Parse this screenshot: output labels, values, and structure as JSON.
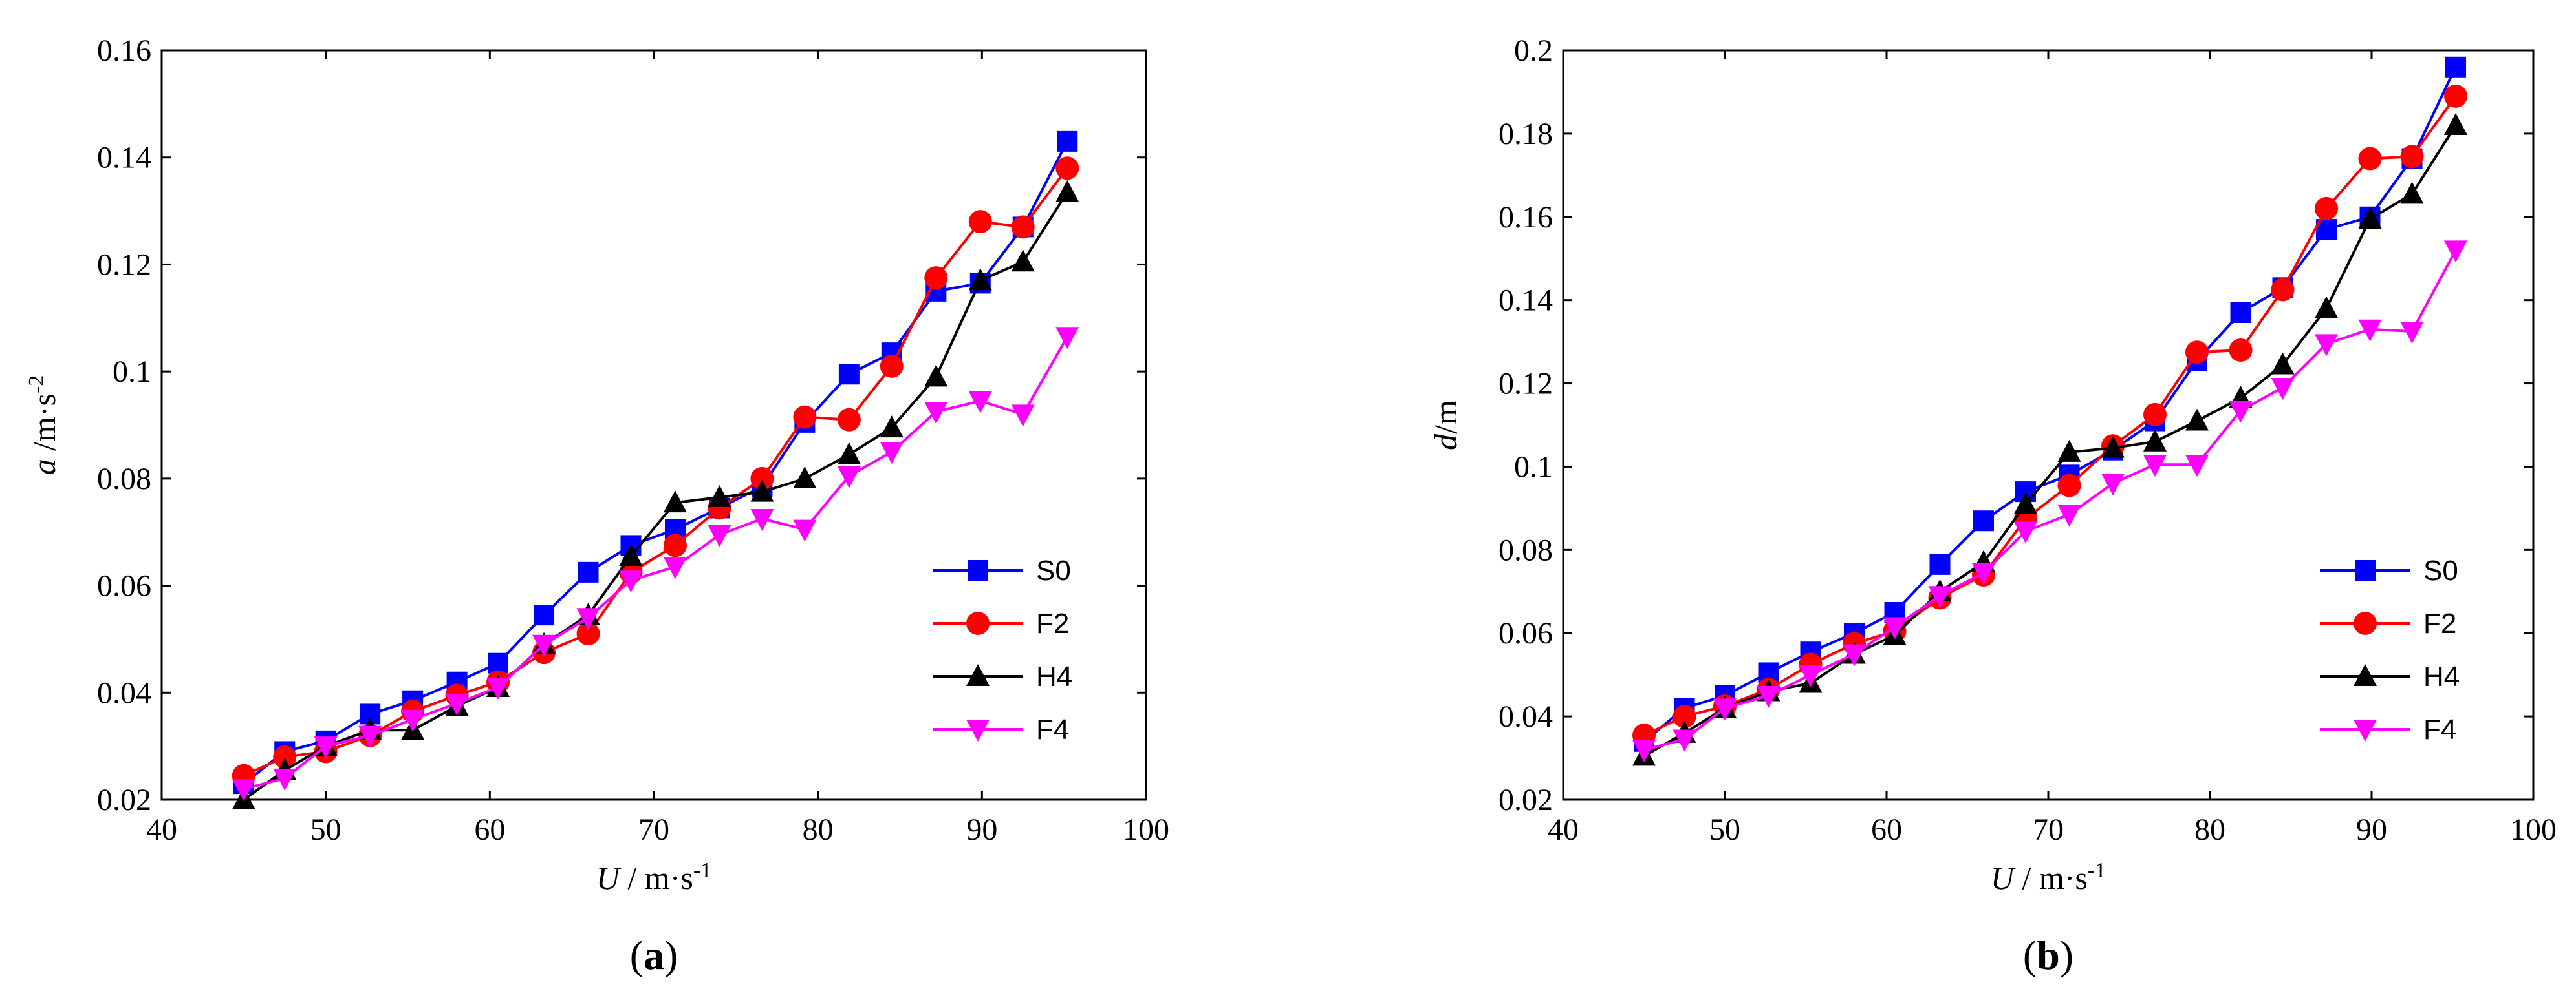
{
  "chart_data": [
    {
      "type": "line",
      "panel_label": "a",
      "xlabel": {
        "var": "U",
        "unit": " / m·s",
        "exp": "-1"
      },
      "ylabel": {
        "var": "a",
        "unit": " /m·s",
        "exp": "-2"
      },
      "xlim": [
        40,
        100
      ],
      "ylim": [
        0.02,
        0.16
      ],
      "xticks": [
        40,
        50,
        60,
        70,
        80,
        90,
        100
      ],
      "xtick_labels": [
        "40",
        "50",
        "60",
        "70",
        "80",
        "90",
        "100"
      ],
      "yticks": [
        0.02,
        0.04,
        0.06,
        0.08,
        0.1,
        0.12,
        0.14,
        0.16
      ],
      "ytick_labels": [
        "0.02",
        "0.04",
        "0.06",
        "0.08",
        "0.1",
        "0.12",
        "0.14",
        "0.16"
      ],
      "legend_position": "bottom-right",
      "x": [
        45,
        47.5,
        50,
        52.7,
        55.3,
        58,
        60.5,
        63.3,
        66,
        68.6,
        71.3,
        74,
        76.6,
        79.2,
        81.9,
        84.5,
        87.2,
        89.9,
        92.5,
        95.2
      ],
      "series": [
        {
          "name": "S0",
          "color": "#0000ff",
          "marker": "square",
          "values": [
            0.023,
            0.029,
            0.031,
            0.036,
            0.0385,
            0.042,
            0.0455,
            0.0545,
            0.0625,
            0.0675,
            0.0705,
            0.0745,
            0.0785,
            0.0905,
            0.0995,
            0.1035,
            0.115,
            0.1165,
            0.127,
            0.143
          ]
        },
        {
          "name": "F2",
          "color": "#ff0000",
          "marker": "circle",
          "values": [
            0.0245,
            0.028,
            0.029,
            0.032,
            0.0365,
            0.0395,
            0.042,
            0.0475,
            0.051,
            0.0625,
            0.0675,
            0.0745,
            0.08,
            0.0915,
            0.091,
            0.101,
            0.1175,
            0.128,
            0.127,
            0.138
          ]
        },
        {
          "name": "H4",
          "color": "#000000",
          "marker": "triangle-up",
          "values": [
            0.02,
            0.0255,
            0.03,
            0.033,
            0.033,
            0.0375,
            0.041,
            0.049,
            0.0545,
            0.0655,
            0.0755,
            0.0765,
            0.0775,
            0.08,
            0.0845,
            0.0895,
            0.099,
            0.117,
            0.1205,
            0.1335
          ]
        },
        {
          "name": "F4",
          "color": "#ff00ff",
          "marker": "triangle-down",
          "values": [
            0.022,
            0.024,
            0.03,
            0.032,
            0.035,
            0.038,
            0.041,
            0.049,
            0.054,
            0.061,
            0.0635,
            0.0695,
            0.0725,
            0.0705,
            0.0805,
            0.085,
            0.0925,
            0.0945,
            0.092,
            0.1065
          ]
        }
      ]
    },
    {
      "type": "line",
      "panel_label": "b",
      "xlabel": {
        "var": "U",
        "unit": " / m·s",
        "exp": "-1"
      },
      "ylabel": {
        "var": "d",
        "unit": "/m",
        "exp": ""
      },
      "xlim": [
        40,
        100
      ],
      "ylim": [
        0.02,
        0.2
      ],
      "xticks": [
        40,
        50,
        60,
        70,
        80,
        90,
        100
      ],
      "xtick_labels": [
        "40",
        "50",
        "60",
        "70",
        "80",
        "90",
        "100"
      ],
      "yticks": [
        0.02,
        0.04,
        0.06,
        0.08,
        0.1,
        0.12,
        0.14,
        0.16,
        0.18,
        0.2
      ],
      "ytick_labels": [
        "0.02",
        "0.04",
        "0.06",
        "0.08",
        "0.1",
        "0.12",
        "0.14",
        "0.16",
        "0.18",
        "0.2"
      ],
      "legend_position": "bottom-right",
      "x": [
        45,
        47.5,
        50,
        52.7,
        55.3,
        58,
        60.5,
        63.3,
        66,
        68.6,
        71.3,
        74,
        76.6,
        79.2,
        81.9,
        84.5,
        87.2,
        89.9,
        92.5,
        95.2
      ],
      "series": [
        {
          "name": "S0",
          "color": "#0000ff",
          "marker": "square",
          "values": [
            0.034,
            0.042,
            0.045,
            0.0505,
            0.0555,
            0.06,
            0.065,
            0.0765,
            0.087,
            0.094,
            0.098,
            0.104,
            0.111,
            0.1255,
            0.137,
            0.143,
            0.157,
            0.16,
            0.174,
            0.196
          ]
        },
        {
          "name": "F2",
          "color": "#ff0000",
          "marker": "circle",
          "values": [
            0.0355,
            0.04,
            0.0425,
            0.0465,
            0.0525,
            0.0575,
            0.0605,
            0.0685,
            0.074,
            0.0875,
            0.0955,
            0.105,
            0.1125,
            0.1275,
            0.128,
            0.1425,
            0.162,
            0.174,
            0.1745,
            0.189
          ]
        },
        {
          "name": "H4",
          "color": "#000000",
          "marker": "triangle-up",
          "values": [
            0.0305,
            0.036,
            0.042,
            0.046,
            0.048,
            0.055,
            0.0595,
            0.07,
            0.077,
            0.091,
            0.1035,
            0.1045,
            0.106,
            0.111,
            0.1165,
            0.1245,
            0.138,
            0.1595,
            0.1655,
            0.182
          ]
        },
        {
          "name": "F4",
          "color": "#ff00ff",
          "marker": "triangle-down",
          "values": [
            0.032,
            0.0345,
            0.042,
            0.045,
            0.05,
            0.055,
            0.0615,
            0.069,
            0.0745,
            0.0845,
            0.0885,
            0.096,
            0.1005,
            0.1005,
            0.1135,
            0.119,
            0.1295,
            0.133,
            0.1325,
            0.152
          ]
        }
      ]
    }
  ]
}
